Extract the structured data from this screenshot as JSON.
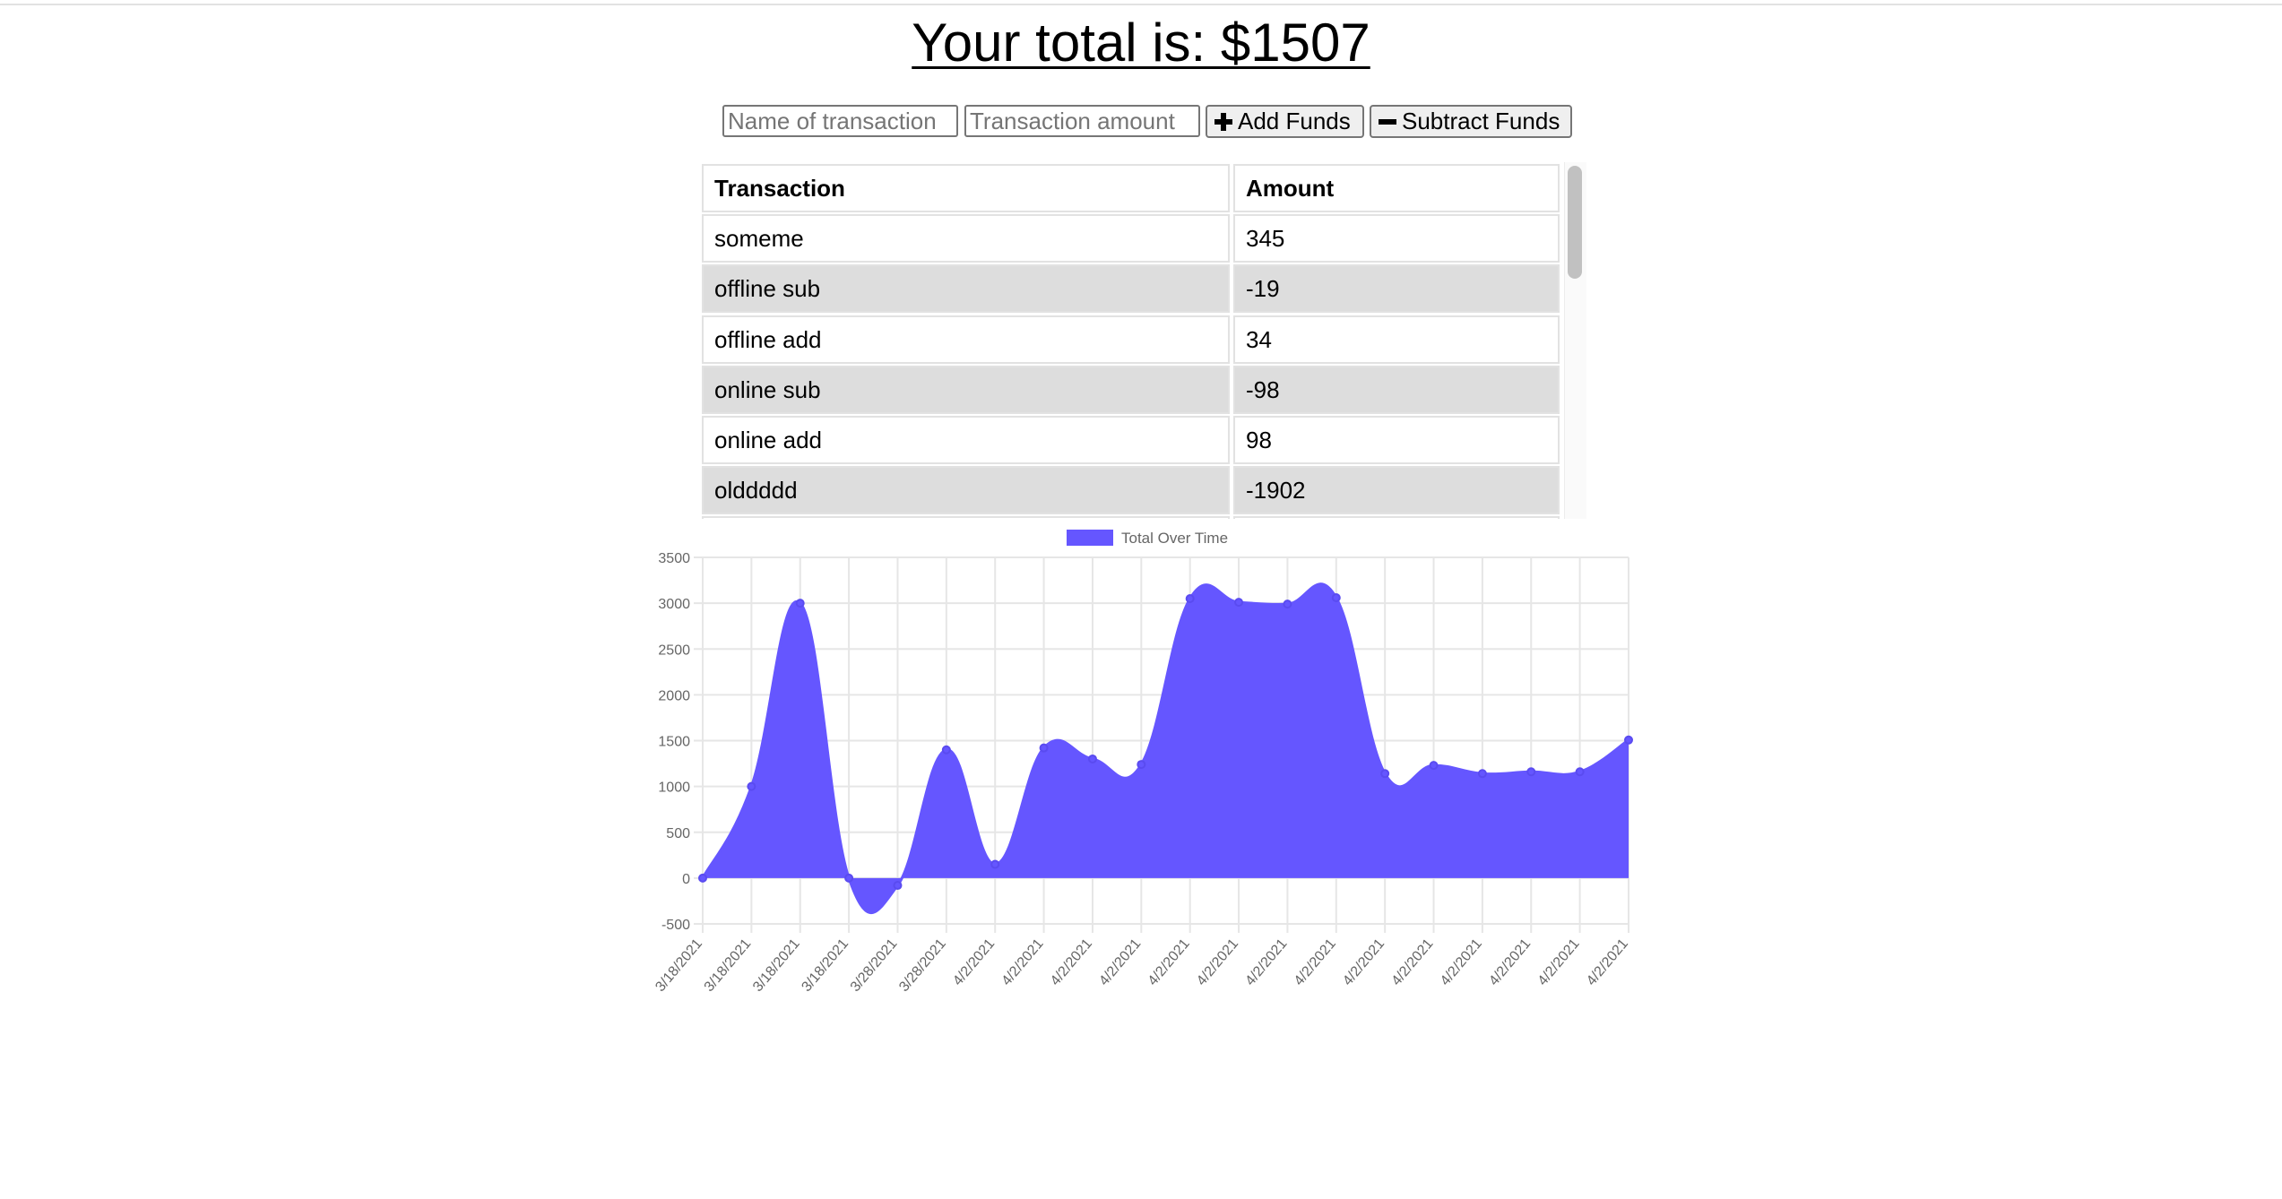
{
  "header": {
    "total_text": "Your total is: $1507"
  },
  "form": {
    "name_placeholder": "Name of transaction",
    "amount_placeholder": "Transaction amount",
    "add_label": "Add Funds",
    "subtract_label": "Subtract Funds"
  },
  "table": {
    "headers": [
      "Transaction",
      "Amount"
    ],
    "rows": [
      {
        "name": "someme",
        "amount": "345"
      },
      {
        "name": "offline sub",
        "amount": "-19"
      },
      {
        "name": "offline add",
        "amount": "34"
      },
      {
        "name": "online sub",
        "amount": "-98"
      },
      {
        "name": "online add",
        "amount": "98"
      },
      {
        "name": "olddddd",
        "amount": "-1902"
      }
    ]
  },
  "chart_data": {
    "type": "area",
    "legend": {
      "label": "Total Over Time",
      "position": "top"
    },
    "color": "#6556ff",
    "x": [
      "3/18/2021",
      "3/18/2021",
      "3/18/2021",
      "3/18/2021",
      "3/28/2021",
      "3/28/2021",
      "4/2/2021",
      "4/2/2021",
      "4/2/2021",
      "4/2/2021",
      "4/2/2021",
      "4/2/2021",
      "4/2/2021",
      "4/2/2021",
      "4/2/2021",
      "4/2/2021",
      "4/2/2021",
      "4/2/2021",
      "4/2/2021",
      "4/2/2021"
    ],
    "series": [
      {
        "name": "Total Over Time",
        "values": [
          0,
          1000,
          3000,
          0,
          -80,
          1400,
          150,
          1420,
          1300,
          1240,
          3050,
          3010,
          2990,
          3060,
          1140,
          1230,
          1140,
          1160,
          1160,
          1507
        ]
      }
    ],
    "yticks": [
      3500,
      3000,
      2500,
      2000,
      1500,
      1000,
      500,
      0,
      -500
    ],
    "ylim": [
      -500,
      3500
    ],
    "grid": true
  }
}
